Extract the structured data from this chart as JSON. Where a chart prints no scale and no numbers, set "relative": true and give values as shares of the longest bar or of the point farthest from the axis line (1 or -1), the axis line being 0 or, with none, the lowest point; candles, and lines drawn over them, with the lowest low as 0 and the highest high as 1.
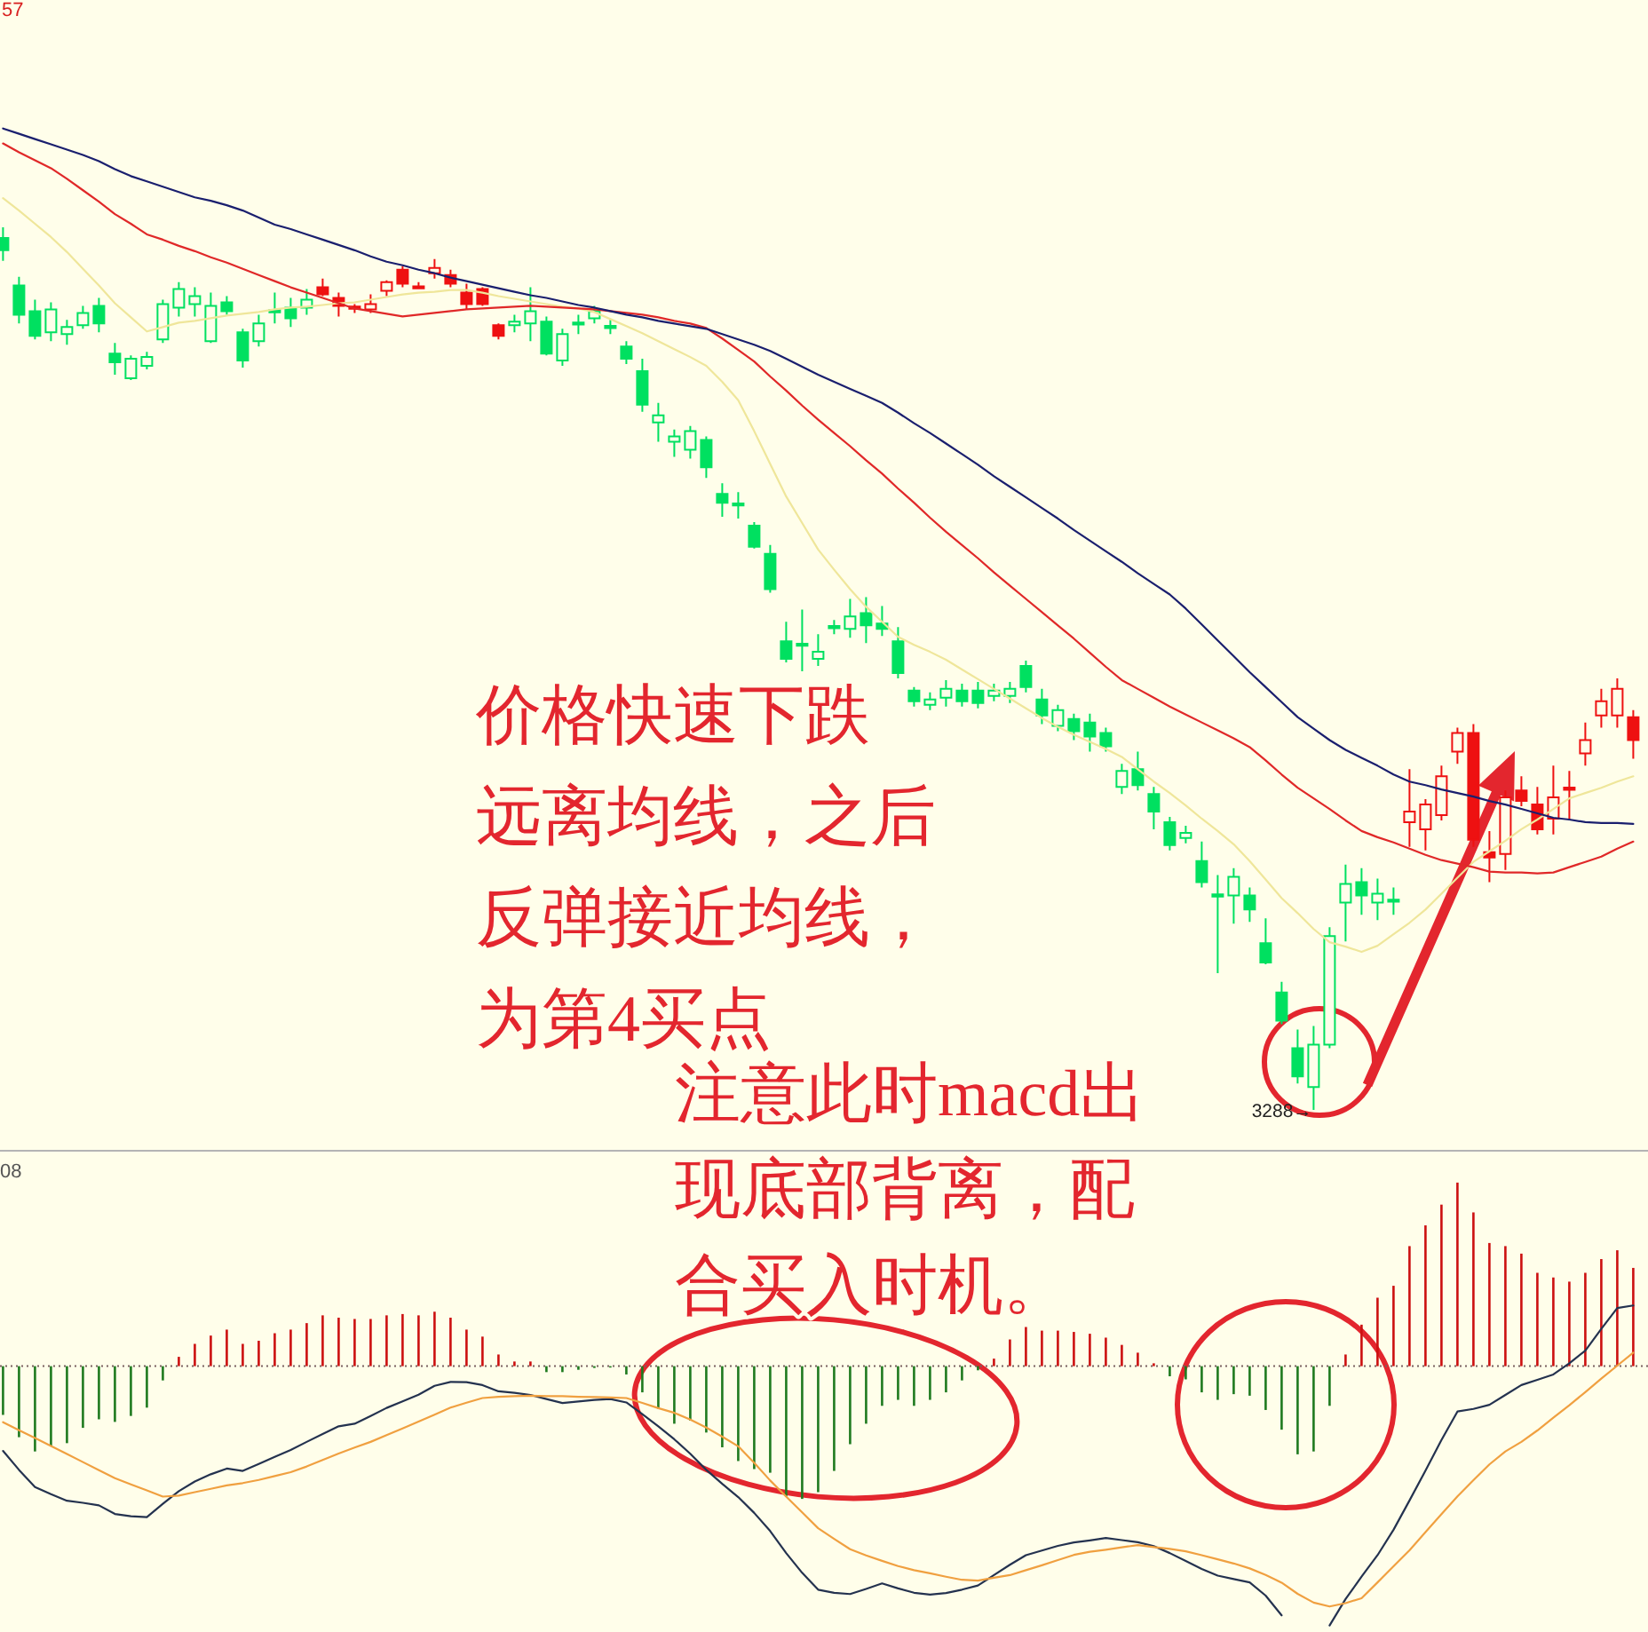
{
  "chart_data": [
    {
      "type": "candlestick",
      "relative": true,
      "categories": [
        null,
        null,
        null,
        null,
        null,
        null,
        null,
        null,
        null,
        null,
        null,
        null,
        null,
        null,
        null,
        null,
        null,
        null,
        null,
        null,
        null,
        null,
        null,
        null,
        null,
        null,
        null,
        null,
        null,
        null,
        null,
        null,
        null,
        null,
        null,
        null,
        null,
        null,
        null,
        null,
        null,
        null,
        null,
        null,
        null,
        null,
        null,
        null,
        null,
        null,
        null,
        null,
        null,
        null,
        null,
        null,
        null,
        null,
        null,
        null,
        null,
        null,
        null,
        null,
        null,
        null,
        null,
        null,
        null,
        null,
        null,
        null,
        null,
        null,
        null,
        null,
        null,
        null,
        null,
        null,
        null,
        null,
        null,
        null,
        null,
        null,
        null,
        null,
        null,
        null,
        null,
        null,
        null,
        null,
        null,
        null,
        null,
        null,
        null,
        null,
        null,
        null,
        null
      ],
      "ohlc": [
        [
          0.988,
          1.0,
          0.962,
          0.974
        ],
        [
          0.934,
          0.944,
          0.891,
          0.901
        ],
        [
          0.905,
          0.918,
          0.873,
          0.877
        ],
        [
          0.881,
          0.915,
          0.871,
          0.907
        ],
        [
          0.879,
          0.895,
          0.867,
          0.887
        ],
        [
          0.889,
          0.911,
          0.885,
          0.903
        ],
        [
          0.911,
          0.92,
          0.881,
          0.891
        ],
        [
          0.857,
          0.869,
          0.833,
          0.847
        ],
        [
          0.829,
          0.855,
          0.827,
          0.851
        ],
        [
          0.843,
          0.859,
          0.839,
          0.853
        ],
        [
          0.873,
          0.918,
          0.869,
          0.913
        ],
        [
          0.909,
          0.938,
          0.899,
          0.93
        ],
        [
          0.913,
          0.932,
          0.899,
          0.922
        ],
        [
          0.871,
          0.926,
          0.869,
          0.911
        ],
        [
          0.915,
          0.922,
          0.901,
          0.905
        ],
        [
          0.881,
          0.885,
          0.841,
          0.849
        ],
        [
          0.871,
          0.901,
          0.865,
          0.891
        ],
        [
          0.905,
          0.926,
          0.891,
          0.905
        ],
        [
          0.909,
          0.92,
          0.887,
          0.897
        ],
        [
          0.909,
          0.93,
          0.901,
          0.918
        ],
        [
          0.932,
          0.942,
          0.922,
          0.924
        ],
        [
          0.92,
          0.926,
          0.899,
          0.911
        ],
        [
          0.909,
          0.913,
          0.903,
          0.909
        ],
        [
          0.907,
          0.924,
          0.903,
          0.913
        ],
        [
          0.928,
          0.94,
          0.922,
          0.938
        ],
        [
          0.952,
          0.956,
          0.932,
          0.936
        ],
        [
          0.932,
          0.938,
          0.93,
          0.932
        ],
        [
          0.948,
          0.964,
          0.942,
          0.954
        ],
        [
          0.946,
          0.952,
          0.932,
          0.936
        ],
        [
          0.926,
          0.936,
          0.907,
          0.913
        ],
        [
          0.93,
          0.932,
          0.911,
          0.913
        ],
        [
          0.889,
          0.891,
          0.873,
          0.877
        ],
        [
          0.889,
          0.901,
          0.881,
          0.893
        ],
        [
          0.891,
          0.932,
          0.871,
          0.905
        ],
        [
          0.893,
          0.899,
          0.855,
          0.857
        ],
        [
          0.849,
          0.885,
          0.843,
          0.879
        ],
        [
          0.891,
          0.901,
          0.879,
          0.891
        ],
        [
          0.897,
          0.911,
          0.891,
          0.905
        ],
        [
          0.887,
          0.895,
          0.879,
          0.887
        ],
        [
          0.865,
          0.871,
          0.845,
          0.851
        ],
        [
          0.837,
          0.851,
          0.791,
          0.799
        ],
        [
          0.779,
          0.801,
          0.757,
          0.787
        ],
        [
          0.757,
          0.771,
          0.74,
          0.763
        ],
        [
          0.748,
          0.775,
          0.738,
          0.769
        ],
        [
          0.759,
          0.763,
          0.716,
          0.728
        ],
        [
          0.698,
          0.71,
          0.672,
          0.688
        ],
        [
          0.686,
          0.7,
          0.67,
          0.686
        ],
        [
          0.662,
          0.666,
          0.636,
          0.638
        ],
        [
          0.63,
          0.64,
          0.586,
          0.59
        ],
        [
          0.531,
          0.553,
          0.507,
          0.511
        ],
        [
          0.527,
          0.567,
          0.497,
          0.527
        ],
        [
          0.511,
          0.539,
          0.503,
          0.519
        ],
        [
          0.547,
          0.555,
          0.539,
          0.547
        ],
        [
          0.545,
          0.579,
          0.535,
          0.559
        ],
        [
          0.563,
          0.581,
          0.529,
          0.549
        ],
        [
          0.551,
          0.571,
          0.537,
          0.545
        ],
        [
          0.531,
          0.547,
          0.489,
          0.495
        ],
        [
          0.475,
          0.479,
          0.457,
          0.463
        ],
        [
          0.459,
          0.473,
          0.453,
          0.465
        ],
        [
          0.467,
          0.487,
          0.457,
          0.477
        ],
        [
          0.475,
          0.483,
          0.457,
          0.463
        ],
        [
          0.475,
          0.485,
          0.455,
          0.461
        ],
        [
          0.469,
          0.483,
          0.463,
          0.475
        ],
        [
          0.469,
          0.485,
          0.461,
          0.477
        ],
        [
          0.503,
          0.509,
          0.473,
          0.479
        ],
        [
          0.465,
          0.477,
          0.437,
          0.447
        ],
        [
          0.435,
          0.459,
          0.429,
          0.453
        ],
        [
          0.443,
          0.449,
          0.419,
          0.429
        ],
        [
          0.439,
          0.449,
          0.406,
          0.423
        ],
        [
          0.427,
          0.433,
          0.406,
          0.412
        ],
        [
          0.366,
          0.392,
          0.358,
          0.384
        ],
        [
          0.386,
          0.406,
          0.362,
          0.368
        ],
        [
          0.358,
          0.366,
          0.318,
          0.338
        ],
        [
          0.326,
          0.332,
          0.294,
          0.3
        ],
        [
          0.308,
          0.322,
          0.302,
          0.314
        ],
        [
          0.282,
          0.304,
          0.252,
          0.258
        ],
        [
          0.243,
          0.266,
          0.155,
          0.243
        ],
        [
          0.243,
          0.274,
          0.211,
          0.264
        ],
        [
          0.243,
          0.252,
          0.213,
          0.227
        ],
        [
          0.189,
          0.217,
          0.165,
          0.167
        ],
        [
          0.133,
          0.145,
          0.097,
          0.101
        ],
        [
          0.07,
          0.091,
          0.03,
          0.038
        ],
        [
          0.026,
          0.095,
          0.0,
          0.074
        ],
        [
          0.074,
          0.207,
          0.07,
          0.197
        ],
        [
          0.235,
          0.278,
          0.191,
          0.256
        ],
        [
          0.258,
          0.274,
          0.221,
          0.243
        ],
        [
          0.235,
          0.262,
          0.215,
          0.245
        ],
        [
          0.237,
          0.252,
          0.221,
          0.237
        ],
        [
          0.326,
          0.386,
          0.298,
          0.338
        ],
        [
          0.318,
          0.352,
          0.294,
          0.346
        ],
        [
          0.334,
          0.39,
          0.328,
          0.378
        ],
        [
          0.406,
          0.433,
          0.392,
          0.427
        ],
        [
          0.427,
          0.437,
          0.298,
          0.306
        ],
        [
          0.292,
          0.316,
          0.258,
          0.286
        ],
        [
          0.29,
          0.362,
          0.272,
          0.354
        ],
        [
          0.362,
          0.378,
          0.344,
          0.35
        ],
        [
          0.346,
          0.366,
          0.312,
          0.318
        ],
        [
          0.33,
          0.39,
          0.312,
          0.354
        ],
        [
          0.364,
          0.384,
          0.328,
          0.364
        ],
        [
          0.404,
          0.439,
          0.39,
          0.419
        ],
        [
          0.447,
          0.477,
          0.433,
          0.463
        ],
        [
          0.447,
          0.489,
          0.433,
          0.477
        ],
        [
          0.445,
          0.453,
          0.398,
          0.419
        ]
      ],
      "colors": [
        "#00e060",
        "#00e060",
        "#00e060",
        "#00e060",
        "#00e060",
        "#00e060",
        "#00e060",
        "#00e060",
        "#00e060",
        "#00e060",
        "#00e060",
        "#00e060",
        "#00e060",
        "#00e060",
        "#00e060",
        "#00e060",
        "#00e060",
        "#00e060",
        "#00e060",
        "#00e060",
        "#ee1111",
        "#ee1111",
        "#ee1111",
        "#ee1111",
        "#ee1111",
        "#ee1111",
        "#ee1111",
        "#ee1111",
        "#ee1111",
        "#ee1111",
        "#ee1111",
        "#ee1111",
        "#00e060",
        "#00e060",
        "#00e060",
        "#00e060",
        "#00e060",
        "#00e060",
        "#00e060",
        "#00e060",
        "#00e060",
        "#00e060",
        "#00e060",
        "#00e060",
        "#00e060",
        "#00e060",
        "#00e060",
        "#00e060",
        "#00e060",
        "#00e060",
        "#00e060",
        "#00e060",
        "#00e060",
        "#00e060",
        "#00e060",
        "#00e060",
        "#00e060",
        "#00e060",
        "#00e060",
        "#00e060",
        "#00e060",
        "#00e060",
        "#00e060",
        "#00e060",
        "#00e060",
        "#00e060",
        "#00e060",
        "#00e060",
        "#00e060",
        "#00e060",
        "#00e060",
        "#00e060",
        "#00e060",
        "#00e060",
        "#00e060",
        "#00e060",
        "#00e060",
        "#00e060",
        "#00e060",
        "#00e060",
        "#00e060",
        "#00e060",
        "#00e060",
        "#00e060",
        "#00e060",
        "#00e060",
        "#00e060",
        "#00e060",
        "#ee1111",
        "#ee1111",
        "#ee1111",
        "#ee1111",
        "#ee1111",
        "#ee1111",
        "#ee1111",
        "#ee1111",
        "#ee1111",
        "#ee1111",
        "#ee1111",
        "#ee1111",
        "#ee1111",
        "#ee1111",
        "#ee1111"
      ],
      "series": [
        {
          "type": "line",
          "color": "#efe69a",
          "values": [
            1.033,
            1.019,
            1.004,
            0.989,
            0.972,
            0.953,
            0.934,
            0.914,
            0.898,
            0.882,
            0.887,
            0.892,
            0.894,
            0.897,
            0.9,
            0.902,
            0.904,
            0.907,
            0.909,
            0.91,
            0.912,
            0.914,
            0.915,
            0.918,
            0.921,
            0.924,
            0.926,
            0.927,
            0.929,
            0.929,
            0.926,
            0.922,
            0.919,
            0.916,
            0.913,
            0.91,
            0.908,
            0.904,
            0.896,
            0.888,
            0.88,
            0.871,
            0.862,
            0.853,
            0.843,
            0.825,
            0.804,
            0.769,
            0.732,
            0.695,
            0.665,
            0.635,
            0.612,
            0.59,
            0.57,
            0.553,
            0.536,
            0.527,
            0.519,
            0.51,
            0.499,
            0.488,
            0.477,
            0.466,
            0.455,
            0.444,
            0.434,
            0.425,
            0.417,
            0.409,
            0.4,
            0.386,
            0.372,
            0.359,
            0.345,
            0.33,
            0.316,
            0.301,
            0.282,
            0.261,
            0.24,
            0.223,
            0.205,
            0.19,
            0.185,
            0.179,
            0.186,
            0.199,
            0.212,
            0.227,
            0.245,
            0.263,
            0.281,
            0.293,
            0.305,
            0.318,
            0.329,
            0.341,
            0.353,
            0.359,
            0.365,
            0.372,
            0.378
          ]
        },
        {
          "type": "line",
          "color": "#e02828",
          "values": [
            1.095,
            1.085,
            1.076,
            1.067,
            1.055,
            1.042,
            1.029,
            1.015,
            1.004,
            0.992,
            0.986,
            0.979,
            0.973,
            0.966,
            0.96,
            0.953,
            0.946,
            0.939,
            0.932,
            0.926,
            0.92,
            0.914,
            0.908,
            0.905,
            0.902,
            0.899,
            0.901,
            0.903,
            0.905,
            0.907,
            0.908,
            0.909,
            0.91,
            0.911,
            0.91,
            0.909,
            0.908,
            0.907,
            0.905,
            0.903,
            0.901,
            0.898,
            0.894,
            0.891,
            0.886,
            0.874,
            0.861,
            0.848,
            0.831,
            0.815,
            0.798,
            0.782,
            0.767,
            0.752,
            0.736,
            0.721,
            0.704,
            0.688,
            0.671,
            0.655,
            0.64,
            0.625,
            0.609,
            0.594,
            0.579,
            0.564,
            0.549,
            0.534,
            0.518,
            0.502,
            0.487,
            0.477,
            0.467,
            0.457,
            0.448,
            0.439,
            0.43,
            0.421,
            0.411,
            0.396,
            0.38,
            0.365,
            0.353,
            0.341,
            0.328,
            0.316,
            0.309,
            0.303,
            0.296,
            0.289,
            0.283,
            0.279,
            0.275,
            0.27,
            0.269,
            0.269,
            0.268,
            0.269,
            0.275,
            0.281,
            0.287,
            0.296,
            0.304
          ]
        },
        {
          "type": "line",
          "color": "#1a1f6e",
          "values": [
            1.112,
            1.106,
            1.1,
            1.094,
            1.088,
            1.082,
            1.075,
            1.066,
            1.058,
            1.052,
            1.046,
            1.04,
            1.034,
            1.03,
            1.025,
            1.019,
            1.011,
            1.003,
            0.998,
            0.992,
            0.986,
            0.98,
            0.974,
            0.967,
            0.961,
            0.957,
            0.952,
            0.948,
            0.943,
            0.939,
            0.935,
            0.931,
            0.927,
            0.923,
            0.92,
            0.916,
            0.912,
            0.909,
            0.905,
            0.901,
            0.898,
            0.894,
            0.891,
            0.888,
            0.885,
            0.879,
            0.873,
            0.867,
            0.86,
            0.851,
            0.842,
            0.833,
            0.825,
            0.817,
            0.809,
            0.801,
            0.79,
            0.778,
            0.767,
            0.755,
            0.743,
            0.731,
            0.718,
            0.706,
            0.694,
            0.682,
            0.67,
            0.657,
            0.645,
            0.633,
            0.621,
            0.608,
            0.596,
            0.584,
            0.568,
            0.55,
            0.532,
            0.514,
            0.496,
            0.479,
            0.462,
            0.445,
            0.432,
            0.419,
            0.408,
            0.399,
            0.39,
            0.38,
            0.372,
            0.368,
            0.363,
            0.359,
            0.355,
            0.35,
            0.346,
            0.341,
            0.336,
            0.331,
            0.329,
            0.326,
            0.325,
            0.325,
            0.324
          ]
        }
      ],
      "annotations": [
        "57",
        "价格快速下跌远离均线，之后反弹接近均线，为第4买点",
        "3288→"
      ]
    },
    {
      "type": "bar",
      "relative": true,
      "categories": [
        null,
        null,
        null,
        null,
        null,
        null,
        null,
        null,
        null,
        null,
        null,
        null,
        null,
        null,
        null,
        null,
        null,
        null,
        null,
        null,
        null,
        null,
        null,
        null,
        null,
        null,
        null,
        null,
        null,
        null,
        null,
        null,
        null,
        null,
        null,
        null,
        null,
        null,
        null,
        null,
        null,
        null,
        null,
        null,
        null,
        null,
        null,
        null,
        null,
        null,
        null,
        null,
        null,
        null,
        null,
        null,
        null,
        null,
        null,
        null,
        null,
        null,
        null,
        null,
        null,
        null,
        null,
        null,
        null,
        null,
        null,
        null,
        null,
        null,
        null,
        null,
        null,
        null,
        null,
        null,
        null,
        null,
        null,
        null,
        null,
        null,
        null,
        null,
        null,
        null,
        null,
        null,
        null,
        null,
        null,
        null,
        null,
        null,
        null,
        null,
        null,
        null,
        null
      ],
      "series": [
        {
          "values": [
            -0.188,
            -0.274,
            -0.329,
            -0.306,
            -0.297,
            -0.238,
            -0.205,
            -0.215,
            -0.192,
            -0.16,
            -0.055,
            0.036,
            0.086,
            0.118,
            0.141,
            0.086,
            0.098,
            0.127,
            0.141,
            0.166,
            0.196,
            0.187,
            0.182,
            0.182,
            0.196,
            0.201,
            0.196,
            0.21,
            0.187,
            0.141,
            0.114,
            0.045,
            0.018,
            0.018,
            -0.023,
            -0.023,
            -0.014,
            -0.007,
            -0.005,
            -0.032,
            -0.101,
            -0.164,
            -0.222,
            -0.21,
            -0.256,
            -0.313,
            -0.366,
            -0.397,
            -0.411,
            -0.503,
            -0.512,
            -0.486,
            -0.404,
            -0.301,
            -0.222,
            -0.153,
            -0.13,
            -0.153,
            -0.13,
            -0.101,
            -0.055,
            -0.016,
            0.029,
            0.103,
            0.151,
            0.137,
            0.137,
            0.132,
            0.125,
            0.11,
            0.082,
            0.052,
            0.011,
            -0.039,
            -0.051,
            -0.101,
            -0.13,
            -0.108,
            -0.114,
            -0.169,
            -0.245,
            -0.34,
            -0.329,
            -0.153,
            0.045,
            0.16,
            0.264,
            0.31,
            0.463,
            0.543,
            0.623,
            0.708,
            0.593,
            0.475,
            0.463,
            0.434,
            0.36,
            0.342,
            0.326,
            0.36,
            0.413,
            0.447,
            0.379
          ],
          "colors": [
            "#1f7a1f",
            "#1f7a1f",
            "#1f7a1f",
            "#1f7a1f",
            "#1f7a1f",
            "#1f7a1f",
            "#1f7a1f",
            "#1f7a1f",
            "#1f7a1f",
            "#1f7a1f",
            "#1f7a1f",
            "#cc1010",
            "#cc1010",
            "#cc1010",
            "#cc1010",
            "#cc1010",
            "#cc1010",
            "#cc1010",
            "#cc1010",
            "#cc1010",
            "#cc1010",
            "#cc1010",
            "#cc1010",
            "#cc1010",
            "#cc1010",
            "#cc1010",
            "#cc1010",
            "#cc1010",
            "#cc1010",
            "#cc1010",
            "#cc1010",
            "#cc1010",
            "#cc1010",
            "#cc1010",
            "#1f7a1f",
            "#1f7a1f",
            "#1f7a1f",
            "#1f7a1f",
            "#1f7a1f",
            "#1f7a1f",
            "#1f7a1f",
            "#1f7a1f",
            "#1f7a1f",
            "#1f7a1f",
            "#1f7a1f",
            "#1f7a1f",
            "#1f7a1f",
            "#1f7a1f",
            "#1f7a1f",
            "#1f7a1f",
            "#1f7a1f",
            "#1f7a1f",
            "#1f7a1f",
            "#1f7a1f",
            "#1f7a1f",
            "#1f7a1f",
            "#1f7a1f",
            "#1f7a1f",
            "#1f7a1f",
            "#1f7a1f",
            "#1f7a1f",
            "#1f7a1f",
            "#cc1010",
            "#cc1010",
            "#cc1010",
            "#cc1010",
            "#cc1010",
            "#cc1010",
            "#cc1010",
            "#cc1010",
            "#cc1010",
            "#cc1010",
            "#cc1010",
            "#1f7a1f",
            "#1f7a1f",
            "#1f7a1f",
            "#1f7a1f",
            "#1f7a1f",
            "#1f7a1f",
            "#1f7a1f",
            "#1f7a1f",
            "#1f7a1f",
            "#1f7a1f",
            "#1f7a1f",
            "#cc1010",
            "#cc1010",
            "#cc1010",
            "#cc1010",
            "#cc1010",
            "#cc1010",
            "#cc1010",
            "#cc1010",
            "#cc1010",
            "#cc1010",
            "#cc1010",
            "#cc1010",
            "#cc1010",
            "#cc1010",
            "#cc1010",
            "#cc1010",
            "#cc1010",
            "#cc1010",
            "#cc1010"
          ]
        },
        {
          "type": "line",
          "color": "#24324f",
          "values": [
            -0.327,
            -0.4,
            -0.466,
            -0.494,
            -0.519,
            -0.527,
            -0.537,
            -0.57,
            -0.579,
            -0.582,
            -0.531,
            -0.482,
            -0.445,
            -0.417,
            -0.395,
            -0.404,
            -0.377,
            -0.35,
            -0.323,
            -0.292,
            -0.262,
            -0.232,
            -0.222,
            -0.192,
            -0.161,
            -0.136,
            -0.11,
            -0.076,
            -0.061,
            -0.062,
            -0.073,
            -0.097,
            -0.103,
            -0.111,
            -0.127,
            -0.142,
            -0.136,
            -0.13,
            -0.127,
            -0.14,
            -0.185,
            -0.232,
            -0.282,
            -0.338,
            -0.4,
            -0.454,
            -0.505,
            -0.566,
            -0.636,
            -0.721,
            -0.797,
            -0.862,
            -0.874,
            -0.879,
            -0.859,
            -0.838,
            -0.857,
            -0.874,
            -0.881,
            -0.875,
            -0.862,
            -0.846,
            -0.806,
            -0.766,
            -0.729,
            -0.711,
            -0.693,
            -0.68,
            -0.672,
            -0.663,
            -0.671,
            -0.679,
            -0.694,
            -0.721,
            -0.751,
            -0.782,
            -0.808,
            -0.821,
            -0.834,
            -0.885,
            -0.961,
            null,
            null,
            -1,
            -0.898,
            -0.812,
            -0.729,
            -0.631,
            -0.518,
            -0.403,
            -0.285,
            -0.175,
            -0.165,
            -0.149,
            -0.111,
            -0.073,
            -0.053,
            -0.032,
            0.011,
            0.06,
            0.144,
            0.224,
            0.234
          ]
        },
        {
          "type": "line",
          "color": "#f0a040",
          "values": [
            -0.216,
            -0.247,
            -0.277,
            -0.308,
            -0.339,
            -0.37,
            -0.401,
            -0.432,
            -0.456,
            -0.479,
            -0.503,
            -0.499,
            -0.486,
            -0.473,
            -0.46,
            -0.451,
            -0.439,
            -0.424,
            -0.409,
            -0.387,
            -0.362,
            -0.337,
            -0.314,
            -0.292,
            -0.266,
            -0.24,
            -0.214,
            -0.187,
            -0.16,
            -0.141,
            -0.123,
            -0.118,
            -0.116,
            -0.114,
            -0.116,
            -0.116,
            -0.118,
            -0.119,
            -0.121,
            -0.123,
            -0.142,
            -0.162,
            -0.18,
            -0.206,
            -0.237,
            -0.272,
            -0.309,
            -0.373,
            -0.441,
            -0.503,
            -0.564,
            -0.625,
            -0.666,
            -0.706,
            -0.73,
            -0.751,
            -0.771,
            -0.787,
            -0.799,
            -0.812,
            -0.824,
            -0.827,
            -0.816,
            -0.806,
            -0.787,
            -0.768,
            -0.748,
            -0.728,
            -0.716,
            -0.708,
            -0.699,
            -0.69,
            -0.698,
            -0.705,
            -0.714,
            -0.729,
            -0.745,
            -0.761,
            -0.78,
            -0.805,
            -0.835,
            -0.878,
            -0.912,
            -0.927,
            -0.914,
            -0.895,
            -0.834,
            -0.772,
            -0.71,
            -0.64,
            -0.571,
            -0.502,
            -0.44,
            -0.379,
            -0.329,
            -0.292,
            -0.248,
            -0.199,
            -0.151,
            -0.1,
            -0.048,
            0.002,
            0.052
          ]
        }
      ],
      "ref_lines": [
        {
          "axis": "y",
          "value": 0,
          "color": "#7a6060",
          "line_style": "dotted"
        }
      ],
      "annotations": [
        "08",
        "注意此时macd出现底部背离，配合买入时机。"
      ]
    }
  ]
}
